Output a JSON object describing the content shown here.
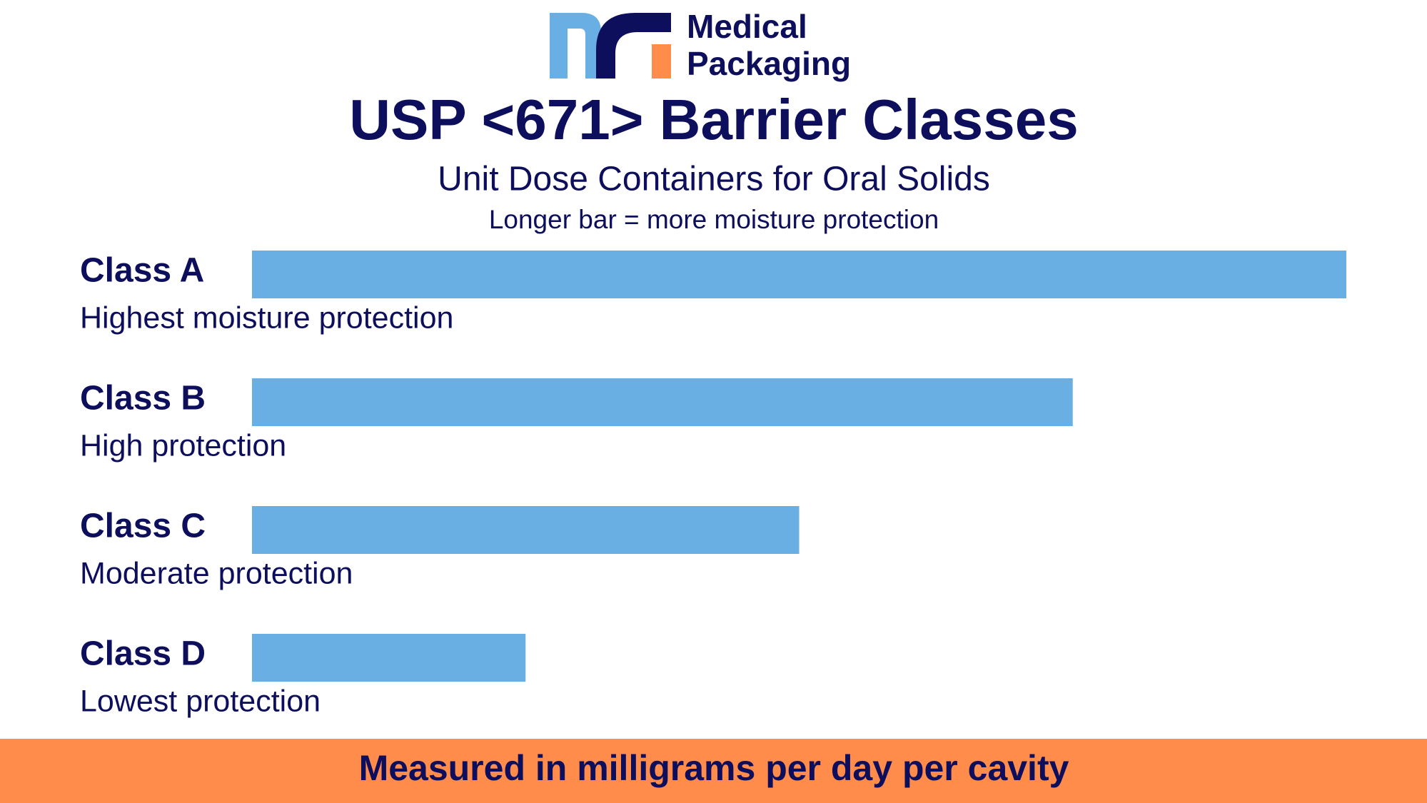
{
  "logo": {
    "line1": "Medical",
    "line2": "Packaging"
  },
  "chart_data": {
    "type": "bar",
    "title": "USP <671> Barrier Classes",
    "subtitle": "Unit Dose Containers for Oral Solids",
    "note": "Longer bar = more moisture protection",
    "categories": [
      "Class A",
      "Class B",
      "Class C",
      "Class D"
    ],
    "descriptions": [
      "Highest moisture protection",
      "High protection",
      "Moderate protection",
      "Lowest protection"
    ],
    "values": [
      4,
      3,
      2,
      1
    ],
    "color": "#6aafe3",
    "footnote": "Measured in milligrams per day per cavity"
  }
}
